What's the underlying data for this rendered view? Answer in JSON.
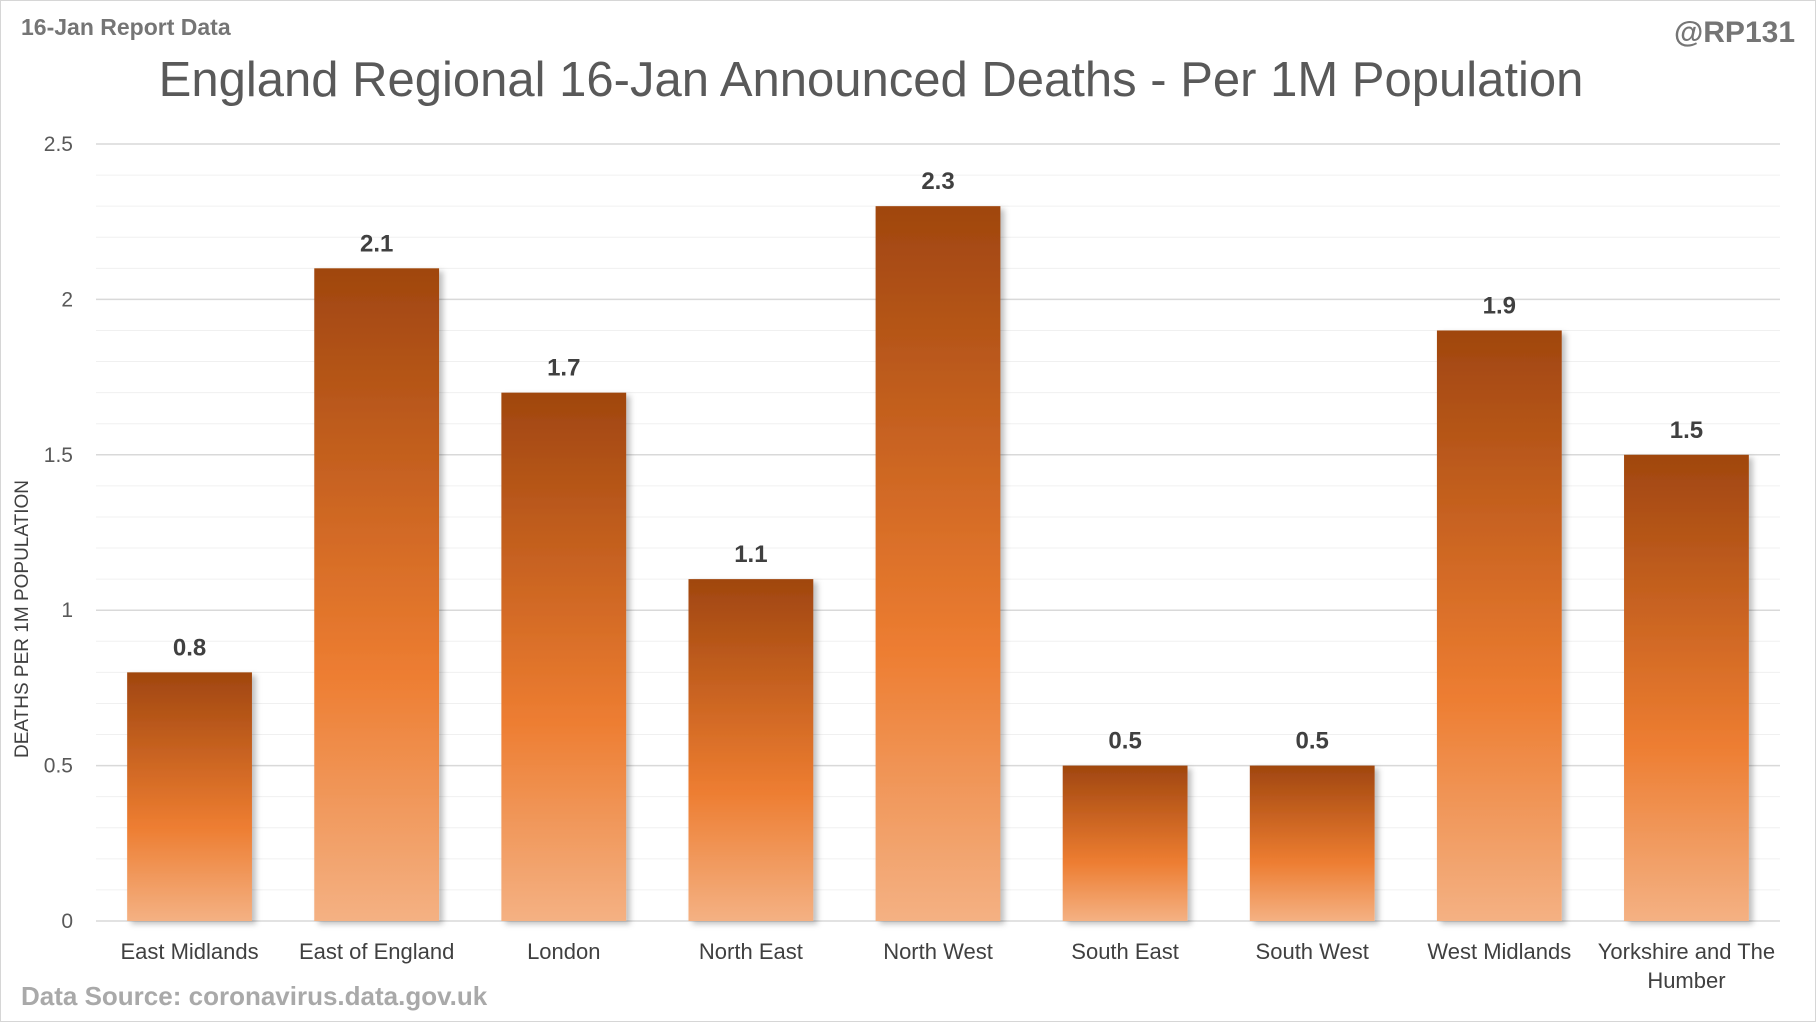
{
  "header": {
    "report_label": "16-Jan Report Data",
    "author_handle": "@RP131"
  },
  "footer": {
    "data_source": "Data Source: coronavirus.data.gov.uk"
  },
  "chart_data": {
    "type": "bar",
    "title": "England Regional 16-Jan Announced Deaths - Per 1M Population",
    "xlabel": "",
    "ylabel": "DEATHS PER 1M POPULATION",
    "categories": [
      "East Midlands",
      "East of England",
      "London",
      "North East",
      "North West",
      "South East",
      "South West",
      "West Midlands",
      "Yorkshire and The Humber"
    ],
    "values": [
      0.8,
      2.1,
      1.7,
      1.1,
      2.3,
      0.5,
      0.5,
      1.9,
      1.5
    ],
    "value_labels": [
      "0.8",
      "2.1",
      "1.7",
      "1.1",
      "2.3",
      "0.5",
      "0.5",
      "1.9",
      "1.5"
    ],
    "ylim": [
      0,
      2.5
    ],
    "y_ticks": [
      0,
      0.5,
      1,
      1.5,
      2,
      2.5
    ],
    "y_tick_labels": [
      "0",
      "0.5",
      "1",
      "1.5",
      "2",
      "2.5"
    ],
    "grid": true,
    "legend": "none",
    "colors": {
      "bar_top": "#a0460f",
      "bar_mid": "#ed7d31",
      "bar_bottom": "#f4b183",
      "major_grid": "#d9d9d9",
      "minor_grid": "#f0f0f0"
    }
  }
}
